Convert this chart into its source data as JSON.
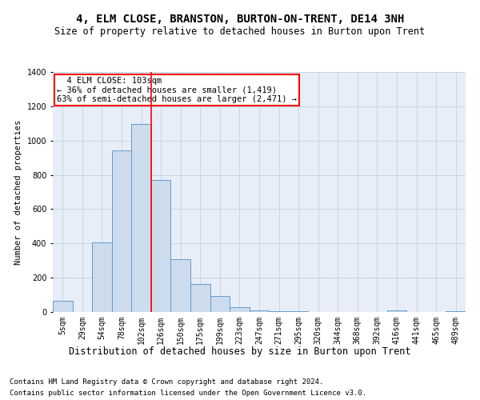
{
  "title": "4, ELM CLOSE, BRANSTON, BURTON-ON-TRENT, DE14 3NH",
  "subtitle": "Size of property relative to detached houses in Burton upon Trent",
  "xlabel": "Distribution of detached houses by size in Burton upon Trent",
  "ylabel": "Number of detached properties",
  "footer1": "Contains HM Land Registry data © Crown copyright and database right 2024.",
  "footer2": "Contains public sector information licensed under the Open Government Licence v3.0.",
  "categories": [
    "5sqm",
    "29sqm",
    "54sqm",
    "78sqm",
    "102sqm",
    "126sqm",
    "150sqm",
    "175sqm",
    "199sqm",
    "223sqm",
    "247sqm",
    "271sqm",
    "295sqm",
    "320sqm",
    "344sqm",
    "368sqm",
    "392sqm",
    "416sqm",
    "441sqm",
    "465sqm",
    "489sqm"
  ],
  "values": [
    65,
    0,
    405,
    945,
    1095,
    770,
    310,
    165,
    95,
    30,
    10,
    5,
    3,
    2,
    2,
    1,
    1,
    10,
    0,
    0,
    5
  ],
  "bar_color": "#ccdcec",
  "bar_edge_color": "#6699cc",
  "annotation_line_bin": 4,
  "annotation_box_text": "  4 ELM CLOSE: 103sqm\n← 36% of detached houses are smaller (1,419)\n63% of semi-detached houses are larger (2,471) →",
  "annotation_box_color": "white",
  "annotation_box_edge_color": "red",
  "ylim": [
    0,
    1400
  ],
  "yticks": [
    0,
    200,
    400,
    600,
    800,
    1000,
    1200,
    1400
  ],
  "grid_color": "#c8d4e4",
  "bg_color": "#e8eef8",
  "title_fontsize": 10,
  "subtitle_fontsize": 8.5,
  "xlabel_fontsize": 8.5,
  "ylabel_fontsize": 7.5,
  "annotation_fontsize": 7.5,
  "tick_fontsize": 7,
  "footer_fontsize": 6.5
}
